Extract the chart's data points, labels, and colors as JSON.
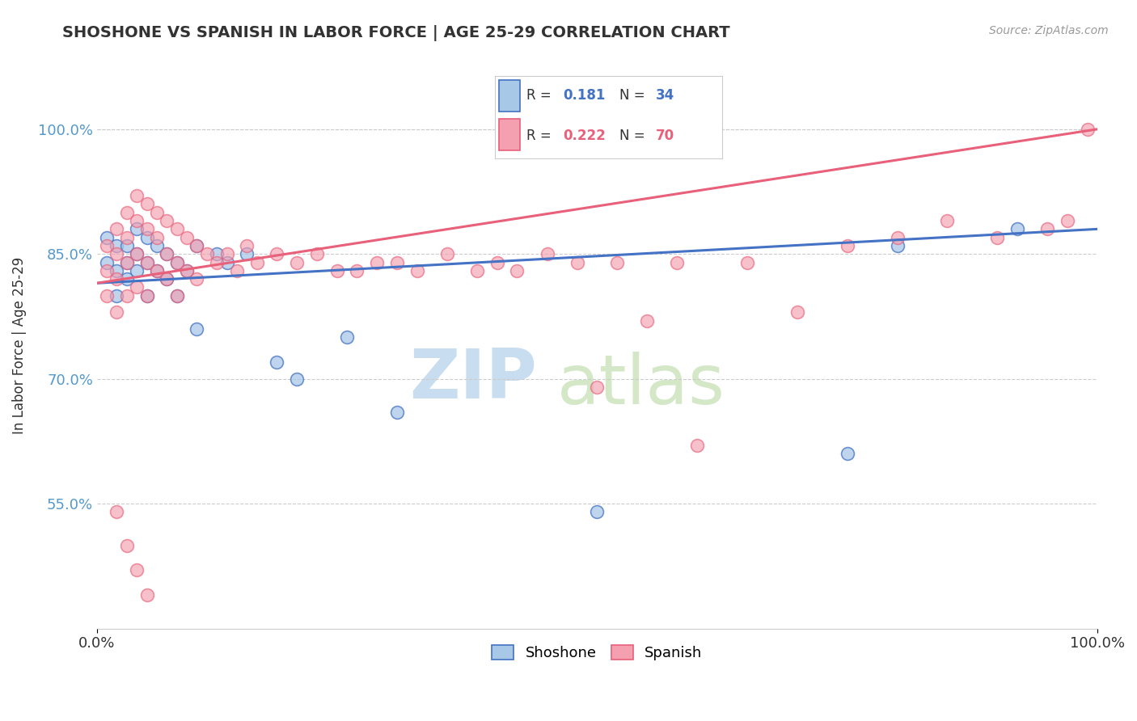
{
  "title": "SHOSHONE VS SPANISH IN LABOR FORCE | AGE 25-29 CORRELATION CHART",
  "source_text": "Source: ZipAtlas.com",
  "ylabel": "In Labor Force | Age 25-29",
  "xlim": [
    0.0,
    1.0
  ],
  "ylim": [
    0.4,
    1.08
  ],
  "xticks": [
    0.0,
    1.0
  ],
  "xticklabels": [
    "0.0%",
    "100.0%"
  ],
  "yticks": [
    0.55,
    0.7,
    0.85,
    1.0
  ],
  "yticklabels": [
    "55.0%",
    "70.0%",
    "85.0%",
    "100.0%"
  ],
  "grid_color": "#cccccc",
  "background_color": "#ffffff",
  "shoshone_color": "#a8c8e8",
  "spanish_color": "#f4a0b0",
  "shoshone_line_color": "#4472c4",
  "spanish_line_color": "#e8607a",
  "r_shoshone": 0.181,
  "n_shoshone": 34,
  "r_spanish": 0.222,
  "n_spanish": 70,
  "legend_label_shoshone": "Shoshone",
  "legend_label_spanish": "Spanish",
  "watermark_zip": "ZIP",
  "watermark_atlas": "atlas",
  "shoshone_x": [
    0.01,
    0.01,
    0.02,
    0.02,
    0.02,
    0.03,
    0.03,
    0.03,
    0.04,
    0.04,
    0.04,
    0.05,
    0.05,
    0.05,
    0.06,
    0.06,
    0.07,
    0.07,
    0.08,
    0.08,
    0.09,
    0.1,
    0.1,
    0.12,
    0.13,
    0.15,
    0.18,
    0.2,
    0.25,
    0.3,
    0.5,
    0.75,
    0.8,
    0.92
  ],
  "shoshone_y": [
    0.87,
    0.84,
    0.86,
    0.83,
    0.8,
    0.86,
    0.84,
    0.82,
    0.88,
    0.85,
    0.83,
    0.87,
    0.84,
    0.8,
    0.86,
    0.83,
    0.85,
    0.82,
    0.84,
    0.8,
    0.83,
    0.86,
    0.76,
    0.85,
    0.84,
    0.85,
    0.72,
    0.7,
    0.75,
    0.66,
    0.54,
    0.61,
    0.86,
    0.88
  ],
  "spanish_x": [
    0.01,
    0.01,
    0.01,
    0.02,
    0.02,
    0.02,
    0.02,
    0.03,
    0.03,
    0.03,
    0.03,
    0.04,
    0.04,
    0.04,
    0.04,
    0.05,
    0.05,
    0.05,
    0.05,
    0.06,
    0.06,
    0.06,
    0.07,
    0.07,
    0.07,
    0.08,
    0.08,
    0.08,
    0.09,
    0.09,
    0.1,
    0.1,
    0.11,
    0.12,
    0.13,
    0.14,
    0.15,
    0.16,
    0.18,
    0.2,
    0.22,
    0.24,
    0.26,
    0.28,
    0.3,
    0.32,
    0.35,
    0.38,
    0.4,
    0.42,
    0.45,
    0.48,
    0.5,
    0.52,
    0.55,
    0.58,
    0.6,
    0.65,
    0.7,
    0.75,
    0.8,
    0.85,
    0.9,
    0.95,
    0.97,
    0.99,
    0.02,
    0.03,
    0.04,
    0.05
  ],
  "spanish_y": [
    0.86,
    0.83,
    0.8,
    0.88,
    0.85,
    0.82,
    0.78,
    0.9,
    0.87,
    0.84,
    0.8,
    0.92,
    0.89,
    0.85,
    0.81,
    0.91,
    0.88,
    0.84,
    0.8,
    0.9,
    0.87,
    0.83,
    0.89,
    0.85,
    0.82,
    0.88,
    0.84,
    0.8,
    0.87,
    0.83,
    0.86,
    0.82,
    0.85,
    0.84,
    0.85,
    0.83,
    0.86,
    0.84,
    0.85,
    0.84,
    0.85,
    0.83,
    0.83,
    0.84,
    0.84,
    0.83,
    0.85,
    0.83,
    0.84,
    0.83,
    0.85,
    0.84,
    0.69,
    0.84,
    0.77,
    0.84,
    0.62,
    0.84,
    0.78,
    0.86,
    0.87,
    0.89,
    0.87,
    0.88,
    0.89,
    1.0,
    0.54,
    0.5,
    0.47,
    0.44
  ]
}
